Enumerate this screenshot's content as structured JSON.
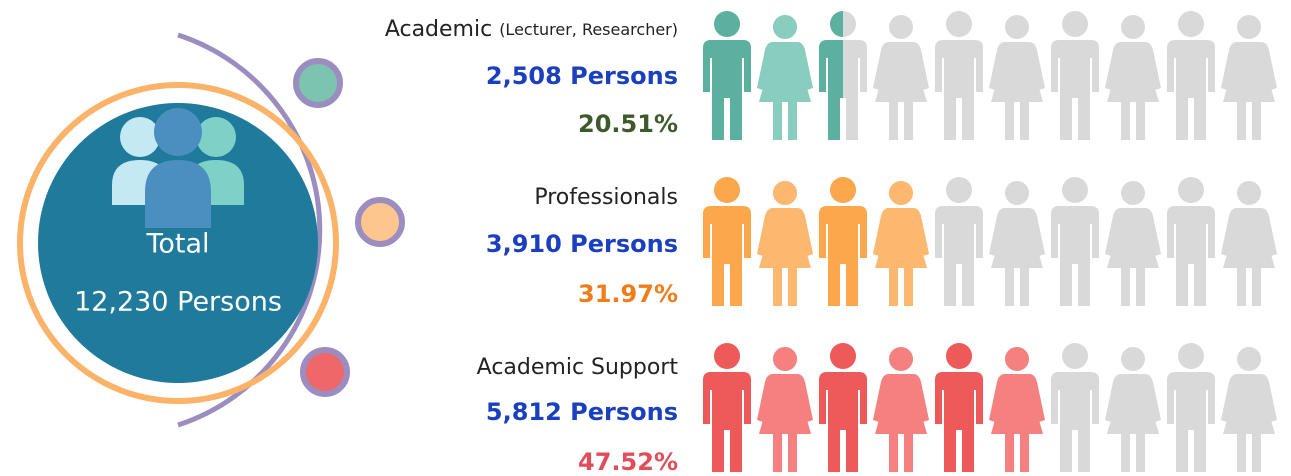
{
  "total": {
    "label": "Total",
    "value": "12,230 Persons"
  },
  "groups": [
    {
      "label": "Academic",
      "label_note": "(Lecturer, Researcher)",
      "persons": "2,508 Persons",
      "percent": "20.51%",
      "icons_filled": 2.5,
      "man_color": "#5bb09f",
      "woman_color": "#88cdbd",
      "percent_color": "#3d5a2b"
    },
    {
      "label": "Professionals",
      "persons": "3,910 Persons",
      "percent": "31.97%",
      "icons_filled": 4,
      "man_color": "#fba84d",
      "woman_color": "#fdb870",
      "percent_color": "#f07d1a"
    },
    {
      "label": "Academic Support",
      "persons": "5,812 Persons",
      "percent": "47.52%",
      "icons_filled": 6,
      "man_color": "#ee5a5a",
      "woman_color": "#f4817f",
      "percent_color": "#e04e5a"
    }
  ]
}
